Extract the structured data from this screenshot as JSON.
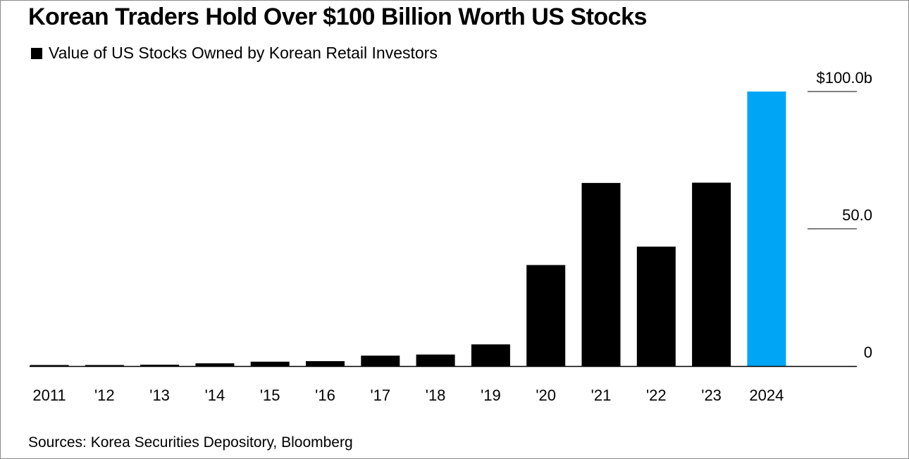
{
  "chart_data": {
    "type": "bar",
    "title": "Korean Traders Hold Over $100 Billion Worth US Stocks",
    "legend": [
      {
        "label": "Value of US Stocks Owned by Korean Retail Investors",
        "color": "#000000"
      }
    ],
    "categories": [
      "2011",
      "'12",
      "'13",
      "'14",
      "'15",
      "'16",
      "'17",
      "'18",
      "'19",
      "'20",
      "'21",
      "'22",
      "'23",
      "2024"
    ],
    "series": [
      {
        "name": "Value of US Stocks Owned by Korean Retail Investors",
        "values": [
          0.2,
          0.3,
          0.5,
          1.0,
          1.6,
          1.8,
          3.8,
          4.2,
          7.9,
          36.8,
          66.7,
          43.5,
          66.8,
          100.0
        ],
        "colors": [
          "#000000",
          "#000000",
          "#000000",
          "#000000",
          "#000000",
          "#000000",
          "#000000",
          "#000000",
          "#000000",
          "#000000",
          "#000000",
          "#000000",
          "#000000",
          "#00a5f5"
        ]
      }
    ],
    "yticks": [
      {
        "value": 0,
        "label": "0"
      },
      {
        "value": 50,
        "label": "50.0"
      },
      {
        "value": 100,
        "label": "$100.0b"
      }
    ],
    "ylim": [
      0,
      100
    ],
    "xlabel": "",
    "ylabel": "",
    "axis_position": "right"
  },
  "source_text": "Sources: Korea Securities Depository, Bloomberg"
}
